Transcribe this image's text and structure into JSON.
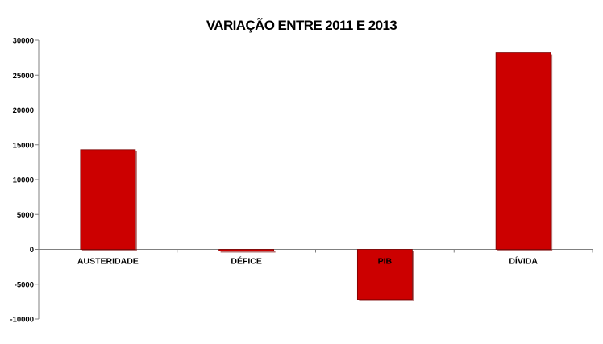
{
  "chart_data": {
    "type": "bar",
    "title": "VARIAÇÃO ENTRE 2011 E 2013",
    "categories": [
      "AUSTERIDADE",
      "DÉFICE",
      "PIB",
      "DÍVIDA"
    ],
    "values": [
      14300,
      -200,
      -7200,
      28200
    ],
    "ylim": [
      -10000,
      30000
    ],
    "yticks": [
      30000,
      25000,
      20000,
      15000,
      10000,
      5000,
      0,
      -5000,
      -10000
    ],
    "xlabel": "",
    "ylabel": "",
    "grid": false,
    "legend": "none",
    "colors": {
      "bar": "#cc0000",
      "bar_shadow": "#7a0000",
      "axis": "#808080"
    }
  }
}
